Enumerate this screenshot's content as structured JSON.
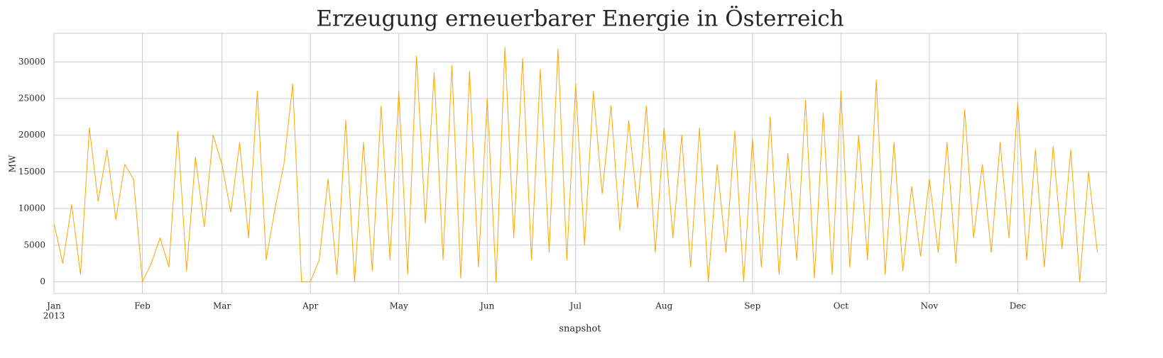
{
  "chart_data": {
    "type": "line",
    "title": "Erzeugung erneuerbarer Energie in Österreich",
    "xlabel": "snapshot",
    "ylabel": "MW",
    "x_year_label": "2013",
    "categories": [
      "Jan",
      null,
      null,
      null,
      null,
      null,
      null,
      null,
      null,
      null,
      "Feb",
      null,
      null,
      null,
      null,
      null,
      null,
      null,
      null,
      "Mar",
      null,
      null,
      null,
      null,
      null,
      null,
      null,
      null,
      null,
      "Apr",
      null,
      null,
      null,
      null,
      null,
      null,
      null,
      null,
      null,
      "May",
      null,
      null,
      null,
      null,
      null,
      null,
      null,
      null,
      null,
      "Jun",
      null,
      null,
      null,
      null,
      null,
      null,
      null,
      null,
      null,
      "Jul",
      null,
      null,
      null,
      null,
      null,
      null,
      null,
      null,
      null,
      "Aug",
      null,
      null,
      null,
      null,
      null,
      null,
      null,
      null,
      null,
      "Sep",
      null,
      null,
      null,
      null,
      null,
      null,
      null,
      null,
      null,
      "Oct",
      null,
      null,
      null,
      null,
      null,
      null,
      null,
      null,
      null,
      "Nov",
      null,
      null,
      null,
      null,
      null,
      null,
      null,
      null,
      null,
      "Dec",
      null,
      null,
      null,
      null,
      null,
      null,
      null,
      null,
      null
    ],
    "series": [
      {
        "name": "MW",
        "color": "#ffa500",
        "values": [
          8000,
          2500,
          10500,
          1000,
          21000,
          11000,
          18000,
          8500,
          16000,
          14000,
          0,
          2500,
          6000,
          2000,
          20500,
          1500,
          17000,
          7500,
          20000,
          16000,
          9500,
          19000,
          6000,
          26000,
          3000,
          10000,
          16000,
          27000,
          0,
          0,
          3000,
          14000,
          1000,
          22000,
          0,
          19000,
          1500,
          24000,
          3000,
          26000,
          1000,
          30800,
          8000,
          28500,
          3000,
          29500,
          500,
          28700,
          2000,
          25000,
          0,
          32000,
          6000,
          30500,
          3000,
          29000,
          4000,
          31800,
          3000,
          27000,
          5000,
          26000,
          12000,
          24000,
          7000,
          22000,
          10000,
          24000,
          4000,
          21000,
          6000,
          20000,
          2000,
          21000,
          0,
          16000,
          4000,
          20500,
          0,
          19500,
          2000,
          22500,
          1000,
          17500,
          3000,
          24800,
          500,
          23000,
          1000,
          26000,
          2000,
          20000,
          3000,
          27500,
          1000,
          19000,
          1500,
          13000,
          3500,
          14000,
          4000,
          19000,
          2500,
          23500,
          6000,
          16000,
          4000,
          19000,
          6000,
          24500,
          3000,
          18000,
          2000,
          18500,
          4500,
          18000,
          0,
          15000,
          4000
        ]
      }
    ],
    "ylim": [
      -1600,
      33900
    ],
    "yticks": [
      0,
      5000,
      10000,
      15000,
      20000,
      25000,
      30000
    ],
    "grid": true
  }
}
